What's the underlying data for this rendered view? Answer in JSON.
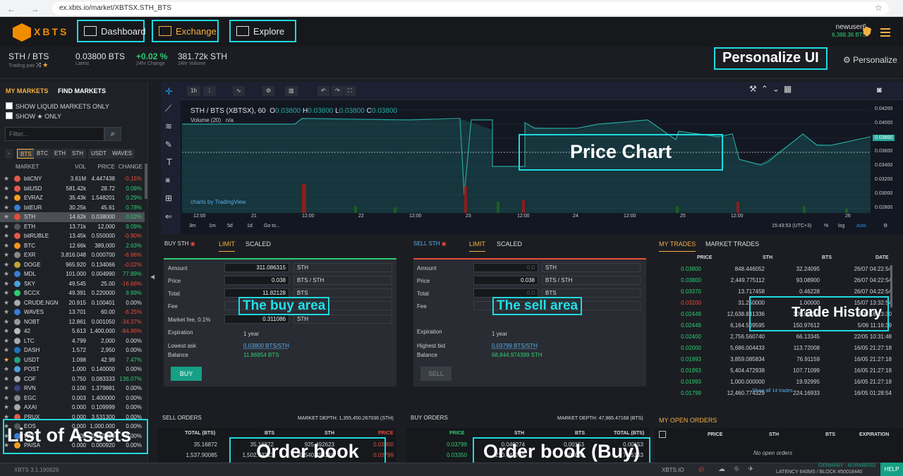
{
  "browser": {
    "url": "ex.xbts.io/market/XBTSX.STH_BTS",
    "nav": "← → ⟳ ⓘ"
  },
  "header": {
    "logo_text": "XBTS",
    "nav": {
      "dashboard": "Dashboard",
      "exchange": "Exchange",
      "explore": "Explore"
    },
    "user": "newuser6",
    "balance": "6,388.36 BTS"
  },
  "ticker": {
    "pair": "STH / BTS",
    "pair_label": "Trading pair",
    "latest": "0.03800 BTS",
    "latest_label": "Latest",
    "change": "+0.02 %",
    "change_label": "24hr Change",
    "volume": "381.72k STH",
    "volume_label": "24hr Volume",
    "personalize": "Personalize"
  },
  "annotations": {
    "personalize_ui": "Personalize UI",
    "price_chart": "Price Chart",
    "buy_area": "The buy area",
    "sell_area": "The sell area",
    "trade_history": "Trade History",
    "order_book": "Order book",
    "order_book_buy": "Order book (Buy)",
    "list_of_assets": "List of Assets"
  },
  "markets": {
    "tab_my": "MY MARKETS",
    "tab_find": "FIND MARKETS",
    "show_liquid": "SHOW LIQUID MARKETS ONLY",
    "show_fav": "SHOW ★ ONLY",
    "filter_placeholder": "Filter...",
    "coin_tabs": [
      "-",
      "BTS",
      "BTC",
      "ETH",
      "STH",
      "USDT",
      "WAVES"
    ],
    "headers": {
      "market": "MARKET",
      "vol": "VOL",
      "price": "PRICE",
      "change": "CHANGE"
    },
    "rows": [
      {
        "name": "bitCNY",
        "vol": "3.61M",
        "price": "4.447438",
        "change": "-0.15%",
        "dir": "neg",
        "fav": false,
        "color": "#e05a4a"
      },
      {
        "name": "bitUSD",
        "vol": "581.42k",
        "price": "28.72",
        "change": "0.09%",
        "dir": "pos",
        "fav": false,
        "color": "#e05a4a"
      },
      {
        "name": "EVRAZ",
        "vol": "35.43k",
        "price": "1.548201",
        "change": "0.29%",
        "dir": "pos",
        "fav": false,
        "color": "#f0a020"
      },
      {
        "name": "bitEUR",
        "vol": "30.25k",
        "price": "45.61",
        "change": "0.78%",
        "dir": "pos",
        "fav": false,
        "color": "#3a7bd5"
      },
      {
        "name": "STH",
        "vol": "14.62k",
        "price": "0.038000",
        "change": "0.02%",
        "dir": "pos",
        "fav": false,
        "color": "#e74c3c",
        "selected": true
      },
      {
        "name": "ETH",
        "vol": "13.71k",
        "price": "12,000",
        "change": "9.09%",
        "dir": "pos",
        "fav": false,
        "color": "#555"
      },
      {
        "name": "bitRUBLE",
        "vol": "13.45k",
        "price": "0.550000",
        "change": "-0.90%",
        "dir": "neg",
        "fav": false,
        "color": "#e05a4a"
      },
      {
        "name": "BTC",
        "vol": "12.66k",
        "price": "389,000",
        "change": "2.63%",
        "dir": "pos",
        "fav": false,
        "color": "#f7931a"
      },
      {
        "name": "EXR",
        "vol": "3,816.048",
        "price": "0.000700",
        "change": "-6.66%",
        "dir": "neg",
        "fav": false,
        "color": "#888"
      },
      {
        "name": "DOGE",
        "vol": "965.920",
        "price": "0.134066",
        "change": "-0.02%",
        "dir": "neg",
        "fav": false,
        "color": "#c2a633"
      },
      {
        "name": "MDL",
        "vol": "101.000",
        "price": "0.004990",
        "change": "77.89%",
        "dir": "pos",
        "fav": false,
        "color": "#3a7bd5"
      },
      {
        "name": "SKY",
        "vol": "49.545",
        "price": "25.00",
        "change": "-16.66%",
        "dir": "neg",
        "fav": false,
        "color": "#4aa3df"
      },
      {
        "name": "BCCX",
        "vol": "49.391",
        "price": "0.220000",
        "change": "9.99%",
        "dir": "pos",
        "fav": false,
        "color": "#2ecc71"
      },
      {
        "name": "CRUDE.NGN",
        "vol": "20.915",
        "price": "0.100401",
        "change": "0.00%",
        "dir": "neu",
        "fav": false,
        "color": "#aaa"
      },
      {
        "name": "WAVES",
        "vol": "13.701",
        "price": "60.00",
        "change": "-6.25%",
        "dir": "neg",
        "fav": false,
        "color": "#3a7bd5"
      },
      {
        "name": "NOBT",
        "vol": "12.861",
        "price": "0.001050",
        "change": "-34.37%",
        "dir": "neg",
        "fav": false,
        "color": "#999"
      },
      {
        "name": "42",
        "vol": "5.613",
        "price": "1,400,000",
        "change": "-84.86%",
        "dir": "neg",
        "fav": false,
        "color": "#bbb"
      },
      {
        "name": "LTC",
        "vol": "4.799",
        "price": "2,000",
        "change": "0.00%",
        "dir": "neu",
        "fav": false,
        "color": "#aaa"
      },
      {
        "name": "DASH",
        "vol": "1.572",
        "price": "2,950",
        "change": "0.00%",
        "dir": "neu",
        "fav": false,
        "color": "#1c75bc"
      },
      {
        "name": "USDT",
        "vol": "1.098",
        "price": "42.99",
        "change": "7.47%",
        "dir": "pos",
        "fav": true,
        "color": "#26a17b"
      },
      {
        "name": "POST",
        "vol": "1.000",
        "price": "0.140000",
        "change": "0.00%",
        "dir": "neu",
        "fav": false,
        "color": "#4aa3df"
      },
      {
        "name": "COF",
        "vol": "0.750",
        "price": "0.083333",
        "change": "136.07%",
        "dir": "pos",
        "fav": false,
        "color": "#aaa"
      },
      {
        "name": "RVN",
        "vol": "0.100",
        "price": "1.379881",
        "change": "0.00%",
        "dir": "neu",
        "fav": false,
        "color": "#384182"
      },
      {
        "name": "EGC",
        "vol": "0.003",
        "price": "1.400000",
        "change": "0.00%",
        "dir": "neu",
        "fav": false,
        "color": "#888"
      },
      {
        "name": "AXAI",
        "vol": "0.000",
        "price": "0.109999",
        "change": "0.00%",
        "dir": "neu",
        "fav": false,
        "color": "#aaa"
      },
      {
        "name": "PRUX",
        "vol": "0.000",
        "price": "3.531300",
        "change": "0.00%",
        "dir": "neu",
        "fav": false,
        "color": "#e05a4a"
      },
      {
        "name": "EOS",
        "vol": "0.000",
        "price": "1,000.000",
        "change": "0.00%",
        "dir": "neu",
        "fav": false,
        "color": "#555"
      },
      {
        "name": "WIX",
        "vol": "0.000",
        "price": "0.150000",
        "change": "0.00%",
        "dir": "neu",
        "fav": false,
        "color": "#3a7bd5"
      },
      {
        "name": "PAISA",
        "vol": "0.000",
        "price": "0.000920",
        "change": "0.00%",
        "dir": "neu",
        "fav": false,
        "color": "#f0a020"
      }
    ]
  },
  "chart": {
    "resolution": "1h",
    "title": "STH / BTS (XBTSX), 60",
    "ohlc": {
      "o": "0.03800",
      "h": "0.03800",
      "l": "0.03800",
      "c": "0.03800"
    },
    "volume_label": "Volume (20)",
    "volume_value": "n/a",
    "tradingview": "charts by TradingView",
    "price_ticks": [
      "0.04200",
      "0.04000",
      "0.03800",
      "0.03600",
      "0.03400",
      "0.03200",
      "0.03000",
      "0.02800"
    ],
    "time_ticks": [
      "12:00",
      "21",
      "12:00",
      "22",
      "12:00",
      "23",
      "12:00",
      "24",
      "12:00",
      "25",
      "12:00",
      "26"
    ],
    "ranges": [
      "3m",
      "1m",
      "5d",
      "1d",
      "Go to..."
    ],
    "clock": "15:43:53 (UTC+3)",
    "scale_opts": [
      "%",
      "log",
      "auto"
    ]
  },
  "buy": {
    "title": "BUY STH",
    "tab_limit": "LIMIT",
    "tab_scaled": "SCALED",
    "amount_label": "Amount",
    "amount": "311.086315",
    "amount_unit": "STH",
    "price_label": "Price",
    "price": "0.038",
    "price_unit": "BTS / STH",
    "total_label": "Total",
    "total": "11.82128",
    "total_unit": "BTS",
    "fee_label": "Fee",
    "market_fee_label": "Market fee, 0.1%",
    "market_fee": "0.311086",
    "market_fee_unit": "STH",
    "expiration_label": "Expiration",
    "expiration": "1 year",
    "lowest_ask_label": "Lowest ask",
    "lowest_ask": "0.03800 BTS/STH",
    "balance_label": "Balance",
    "balance": "11.86954 BTS",
    "button": "BUY"
  },
  "sell": {
    "title": "SELL STH",
    "tab_limit": "LIMIT",
    "tab_scaled": "SCALED",
    "amount_label": "Amount",
    "amount": "0.0",
    "amount_unit": "STH",
    "price_label": "Price",
    "price": "0.038",
    "price_unit": "BTS / STH",
    "total_label": "Total",
    "total": "0.0",
    "total_unit": "BTS",
    "fee_label": "Fee",
    "expiration_label": "Expiration",
    "expiration": "1 year",
    "highest_bid_label": "Highest bid",
    "highest_bid": "0.03799 BTS/STH",
    "balance_label": "Balance",
    "balance": "68,844.974399 STH",
    "button": "SELL"
  },
  "trades": {
    "tab_my": "MY TRADES",
    "tab_market": "MARKET TRADES",
    "headers": {
      "price": "PRICE",
      "sth": "STH",
      "bts": "BTS",
      "date": "DATE"
    },
    "rows": [
      {
        "price": "0.03800",
        "sth": "848.446052",
        "bts": "32.24095",
        "date": "26/07 04:22:54",
        "dir": "pos"
      },
      {
        "price": "0.03800",
        "sth": "2,449.775112",
        "bts": "93.08900",
        "date": "26/07 04:22:54",
        "dir": "pos"
      },
      {
        "price": "0.03370",
        "sth": "13.717458",
        "bts": "0.46228",
        "date": "26/07 04:22:54",
        "dir": "pos"
      },
      {
        "price": "0.03200",
        "sth": "31.250000",
        "bts": "1.00000",
        "date": "15/07 13:32:54",
        "dir": "neg"
      },
      {
        "price": "0.02449",
        "sth": "12,638.841336",
        "bts": "309.51764",
        "date": "5/06 18:13:30",
        "dir": "pos"
      },
      {
        "price": "0.02449",
        "sth": "6,164.509595",
        "bts": "150.97612",
        "date": "5/06 11:16:39",
        "dir": "pos"
      },
      {
        "price": "0.02400",
        "sth": "2,756.560740",
        "bts": "66.13345",
        "date": "22/05 10:31:48",
        "dir": "pos"
      },
      {
        "price": "0.02000",
        "sth": "5,686.004433",
        "bts": "113.72008",
        "date": "16/05 21:27:18",
        "dir": "pos"
      },
      {
        "price": "0.01993",
        "sth": "3,859.085834",
        "bts": "76.91159",
        "date": "16/05 21:27:18",
        "dir": "pos"
      },
      {
        "price": "0.01993",
        "sth": "5,404.472938",
        "bts": "107.71099",
        "date": "16/05 21:27:18",
        "dir": "pos"
      },
      {
        "price": "0.01993",
        "sth": "1,000.000000",
        "bts": "19.92995",
        "date": "16/05 21:27:18",
        "dir": "pos"
      },
      {
        "price": "0.01799",
        "sth": "12,460.774329",
        "bts": "224.16933",
        "date": "16/05 01:28:54",
        "dir": "pos"
      }
    ],
    "show_all": "Show all 14 trades"
  },
  "sell_orders": {
    "title": "SELL ORDERS",
    "depth": "MARKET DEPTH: 1,355,450.267036 (STH)",
    "headers": {
      "total": "TOTAL (BTS)",
      "bts": "BTS",
      "sth": "STH",
      "price": "PRICE"
    },
    "rows": [
      {
        "total": "35.16872",
        "bts": "35.16872",
        "sth": "925.492623",
        "price": "0.03800"
      },
      {
        "total": "1,537.90085",
        "bts": "1,502.73213",
        "sth": "39,540.754218",
        "price": "0.03799"
      }
    ]
  },
  "buy_orders": {
    "title": "BUY ORDERS",
    "depth": "MARKET DEPTH: 47,985.47168 (BTS)",
    "headers": {
      "price": "PRICE",
      "sth": "STH",
      "bts": "BTS",
      "total": "TOTAL (BTS)"
    },
    "rows": [
      {
        "price": "0.03799",
        "sth": "0.040274",
        "bts": "0.00153",
        "total": "0.00153"
      },
      {
        "price": "0.03350",
        "sth": "210.447761",
        "bts": "7.05000",
        "total": "7.05153"
      }
    ]
  },
  "open_orders": {
    "title": "MY OPEN ORDERS",
    "headers": {
      "price": "PRICE",
      "sth": "STH",
      "bts": "BTS",
      "expiration": "EXPIRATION"
    },
    "empty": "No open orders"
  },
  "footer": {
    "version": "XBTS 3.1.190828",
    "site": "XBTS.IO",
    "node": "GERMANY - NÜRNBERG",
    "latency": "LATENCY 640MS / BLOCK #50018440",
    "help": "HELP"
  }
}
